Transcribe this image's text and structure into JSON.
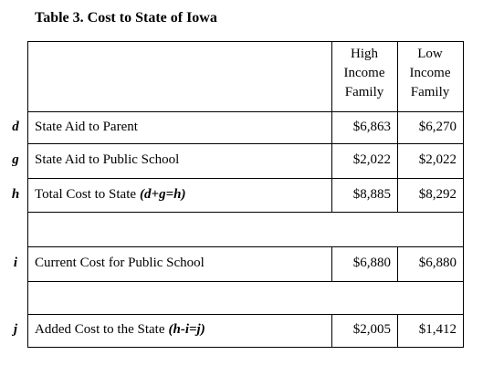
{
  "title": "Table 3.  Cost to State of Iowa",
  "header": {
    "high": [
      "High",
      "Income",
      "Family"
    ],
    "low": [
      "Low",
      "Income",
      "Family"
    ]
  },
  "rows": [
    {
      "letter": "d",
      "label": "State Aid to Parent",
      "high": "$6,863",
      "low": "$6,270"
    },
    {
      "letter": "g",
      "label": "State Aid to Public School",
      "high": "$2,022",
      "low": "$2,022"
    },
    {
      "letter": "h",
      "label": "Total Cost to State",
      "formula": "(d+g=h)",
      "high": "$8,885",
      "low": "$8,292"
    },
    {
      "letter": "i",
      "label": "Current Cost for Public School",
      "high": "$6,880",
      "low": "$6,880"
    },
    {
      "letter": "j",
      "label": "Added Cost to the State",
      "formula": "(h-i=j)",
      "high": "$2,005",
      "low": "$1,412"
    }
  ]
}
